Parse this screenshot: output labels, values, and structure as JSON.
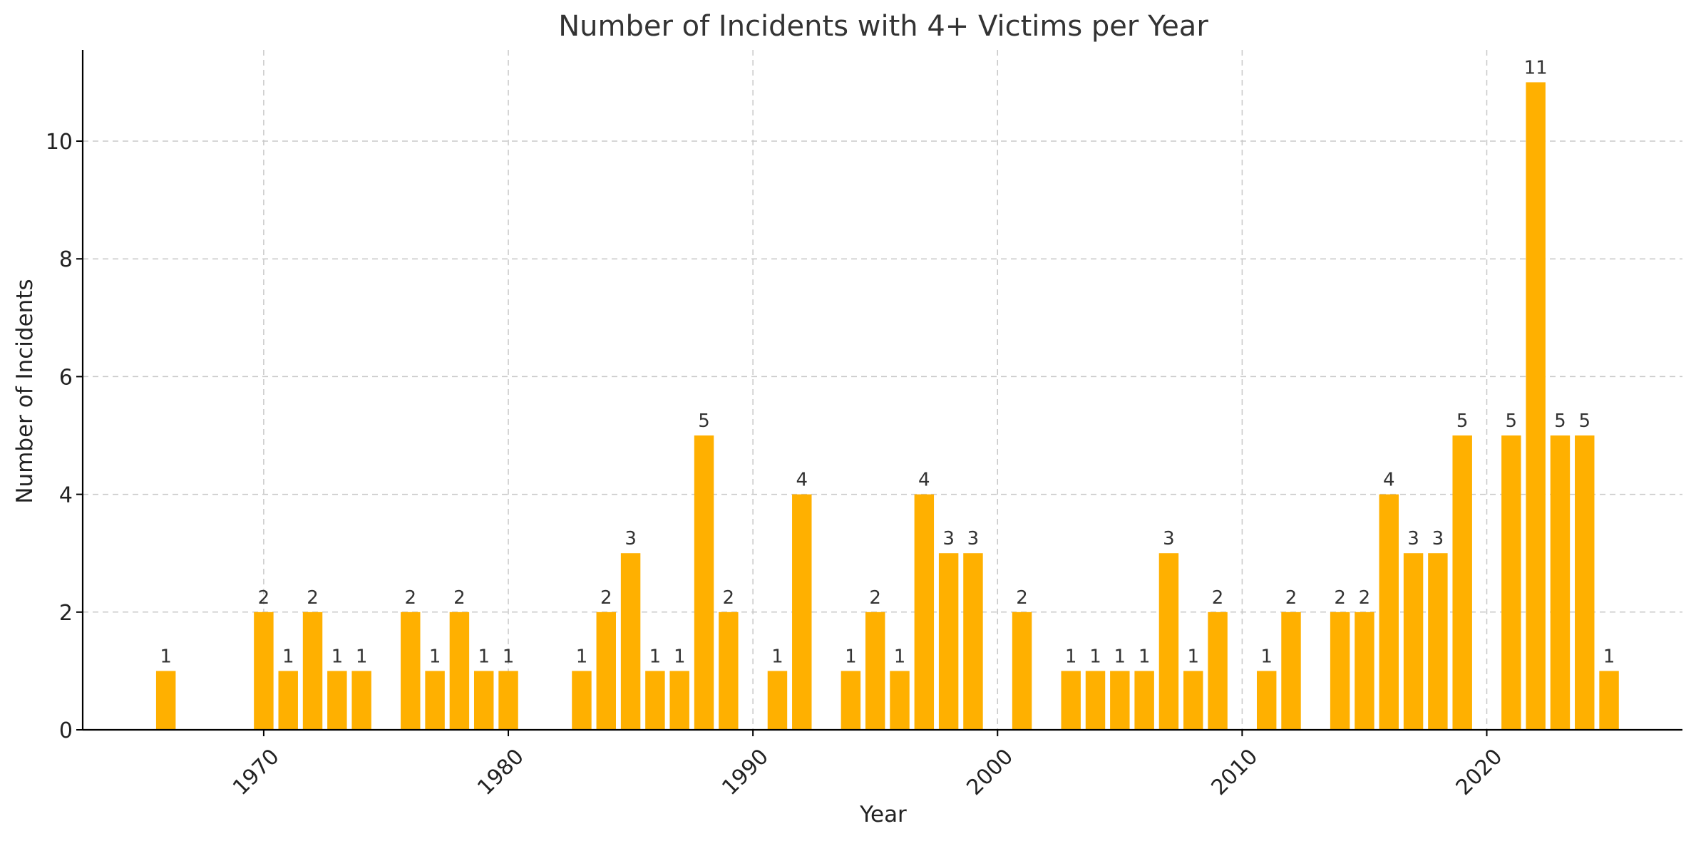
{
  "chart_data": {
    "type": "bar",
    "title": "Number of Incidents with 4+ Victims per Year",
    "xlabel": "Year",
    "ylabel": "Number of Incidents",
    "x": [
      1966,
      1970,
      1971,
      1972,
      1973,
      1974,
      1976,
      1977,
      1978,
      1979,
      1980,
      1983,
      1984,
      1985,
      1986,
      1987,
      1988,
      1989,
      1991,
      1992,
      1994,
      1995,
      1996,
      1997,
      1998,
      1999,
      2001,
      2003,
      2004,
      2005,
      2006,
      2007,
      2008,
      2009,
      2011,
      2012,
      2014,
      2015,
      2016,
      2017,
      2018,
      2019,
      2021,
      2022,
      2023,
      2024,
      2025
    ],
    "values": [
      1,
      2,
      1,
      2,
      1,
      1,
      2,
      1,
      2,
      1,
      1,
      1,
      2,
      3,
      1,
      1,
      5,
      2,
      1,
      4,
      1,
      2,
      1,
      4,
      3,
      3,
      2,
      1,
      1,
      1,
      1,
      3,
      1,
      2,
      1,
      2,
      2,
      2,
      4,
      3,
      3,
      5,
      5,
      11,
      5,
      5,
      1
    ],
    "xlim": [
      1962.6,
      2028.0
    ],
    "ylim": [
      0,
      11.55
    ],
    "xticks": [
      1970,
      1980,
      1990,
      2000,
      2010,
      2020
    ],
    "xtick_labels": [
      "1970",
      "1980",
      "1990",
      "2000",
      "2010",
      "2020"
    ],
    "yticks": [
      0,
      2,
      4,
      6,
      8,
      10
    ],
    "ytick_labels": [
      "0",
      "2",
      "4",
      "6",
      "8",
      "10"
    ],
    "grid": true,
    "bar_color": "#FFB000"
  }
}
